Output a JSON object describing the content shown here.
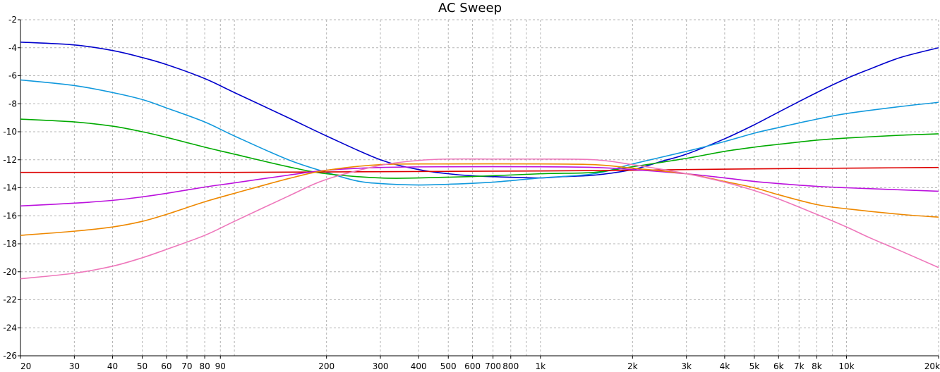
{
  "chart_data": {
    "type": "line",
    "title": "AC Sweep",
    "x_scale": "log",
    "xlim": [
      20,
      20000
    ],
    "ylim": [
      -26,
      -2
    ],
    "grid": true,
    "x_ticks": [
      {
        "value": 20,
        "label": "20"
      },
      {
        "value": 30,
        "label": "30"
      },
      {
        "value": 40,
        "label": "40"
      },
      {
        "value": 50,
        "label": "50"
      },
      {
        "value": 60,
        "label": "60"
      },
      {
        "value": 70,
        "label": "70"
      },
      {
        "value": 80,
        "label": "80"
      },
      {
        "value": 90,
        "label": "90"
      },
      {
        "value": 200,
        "label": "200"
      },
      {
        "value": 300,
        "label": "300"
      },
      {
        "value": 400,
        "label": "400"
      },
      {
        "value": 500,
        "label": "500"
      },
      {
        "value": 600,
        "label": "600"
      },
      {
        "value": 700,
        "label": "700"
      },
      {
        "value": 800,
        "label": "800"
      },
      {
        "value": 1000,
        "label": "1k"
      },
      {
        "value": 2000,
        "label": "2k"
      },
      {
        "value": 3000,
        "label": "3k"
      },
      {
        "value": 4000,
        "label": "4k"
      },
      {
        "value": 5000,
        "label": "5k"
      },
      {
        "value": 6000,
        "label": "6k"
      },
      {
        "value": 7000,
        "label": "7k"
      },
      {
        "value": 8000,
        "label": "8k"
      },
      {
        "value": 10000,
        "label": "10k"
      },
      {
        "value": 20000,
        "label": "20k"
      }
    ],
    "x_grid": [
      20,
      30,
      40,
      50,
      60,
      70,
      80,
      90,
      100,
      200,
      300,
      400,
      500,
      600,
      700,
      800,
      900,
      1000,
      2000,
      3000,
      4000,
      5000,
      6000,
      7000,
      8000,
      9000,
      10000,
      20000
    ],
    "y_ticks": [
      {
        "value": -2,
        "label": "-2"
      },
      {
        "value": -4,
        "label": "-4"
      },
      {
        "value": -6,
        "label": "-6"
      },
      {
        "value": -8,
        "label": "-8"
      },
      {
        "value": -10,
        "label": "-10"
      },
      {
        "value": -12,
        "label": "-12"
      },
      {
        "value": -14,
        "label": "-14"
      },
      {
        "value": -16,
        "label": "-16"
      },
      {
        "value": -18,
        "label": "-18"
      },
      {
        "value": -20,
        "label": "-20"
      },
      {
        "value": -22,
        "label": "-22"
      },
      {
        "value": -24,
        "label": "-24"
      },
      {
        "value": -26,
        "label": "-26"
      }
    ],
    "series": [
      {
        "color": "#0000cc",
        "points": [
          [
            20,
            -3.6
          ],
          [
            30,
            -3.8
          ],
          [
            40,
            -4.2
          ],
          [
            50,
            -4.7
          ],
          [
            60,
            -5.2
          ],
          [
            80,
            -6.2
          ],
          [
            100,
            -7.2
          ],
          [
            150,
            -9.0
          ],
          [
            200,
            -10.3
          ],
          [
            300,
            -12.0
          ],
          [
            400,
            -12.7
          ],
          [
            500,
            -13.0
          ],
          [
            600,
            -13.15
          ],
          [
            800,
            -13.25
          ],
          [
            1000,
            -13.3
          ],
          [
            1200,
            -13.2
          ],
          [
            1500,
            -13.1
          ],
          [
            2000,
            -12.7
          ],
          [
            2500,
            -12.1
          ],
          [
            3000,
            -11.6
          ],
          [
            4000,
            -10.5
          ],
          [
            5000,
            -9.5
          ],
          [
            6000,
            -8.6
          ],
          [
            8000,
            -7.2
          ],
          [
            10000,
            -6.2
          ],
          [
            12000,
            -5.5
          ],
          [
            15000,
            -4.7
          ],
          [
            20000,
            -4.0
          ]
        ]
      },
      {
        "color": "#1199dd",
        "points": [
          [
            20,
            -6.3
          ],
          [
            30,
            -6.7
          ],
          [
            40,
            -7.2
          ],
          [
            50,
            -7.7
          ],
          [
            60,
            -8.3
          ],
          [
            80,
            -9.3
          ],
          [
            100,
            -10.3
          ],
          [
            150,
            -12.0
          ],
          [
            200,
            -12.9
          ],
          [
            250,
            -13.5
          ],
          [
            300,
            -13.7
          ],
          [
            400,
            -13.8
          ],
          [
            500,
            -13.75
          ],
          [
            700,
            -13.6
          ],
          [
            1000,
            -13.3
          ],
          [
            1500,
            -13.0
          ],
          [
            2000,
            -12.3
          ],
          [
            3000,
            -11.4
          ],
          [
            4000,
            -10.7
          ],
          [
            5000,
            -10.1
          ],
          [
            6000,
            -9.7
          ],
          [
            8000,
            -9.1
          ],
          [
            10000,
            -8.7
          ],
          [
            15000,
            -8.2
          ],
          [
            20000,
            -7.9
          ]
        ]
      },
      {
        "color": "#00aa00",
        "points": [
          [
            20,
            -9.1
          ],
          [
            30,
            -9.3
          ],
          [
            40,
            -9.6
          ],
          [
            50,
            -10.0
          ],
          [
            60,
            -10.4
          ],
          [
            80,
            -11.1
          ],
          [
            100,
            -11.6
          ],
          [
            150,
            -12.5
          ],
          [
            200,
            -13.0
          ],
          [
            300,
            -13.3
          ],
          [
            400,
            -13.3
          ],
          [
            600,
            -13.2
          ],
          [
            1000,
            -13.0
          ],
          [
            1500,
            -12.9
          ],
          [
            2000,
            -12.5
          ],
          [
            3000,
            -11.9
          ],
          [
            4000,
            -11.4
          ],
          [
            5000,
            -11.1
          ],
          [
            6000,
            -10.9
          ],
          [
            8000,
            -10.6
          ],
          [
            10000,
            -10.45
          ],
          [
            15000,
            -10.25
          ],
          [
            20000,
            -10.15
          ]
        ]
      },
      {
        "color": "#dd0000",
        "points": [
          [
            20,
            -12.9
          ],
          [
            100,
            -12.9
          ],
          [
            300,
            -12.85
          ],
          [
            1000,
            -12.8
          ],
          [
            2000,
            -12.75
          ],
          [
            3000,
            -12.7
          ],
          [
            5000,
            -12.65
          ],
          [
            10000,
            -12.6
          ],
          [
            20000,
            -12.55
          ]
        ]
      },
      {
        "color": "#bb11dd",
        "points": [
          [
            20,
            -15.3
          ],
          [
            30,
            -15.1
          ],
          [
            40,
            -14.9
          ],
          [
            50,
            -14.65
          ],
          [
            60,
            -14.4
          ],
          [
            80,
            -13.95
          ],
          [
            100,
            -13.65
          ],
          [
            150,
            -13.1
          ],
          [
            200,
            -12.75
          ],
          [
            300,
            -12.55
          ],
          [
            500,
            -12.5
          ],
          [
            1000,
            -12.5
          ],
          [
            1500,
            -12.55
          ],
          [
            2000,
            -12.7
          ],
          [
            3000,
            -13.0
          ],
          [
            4000,
            -13.3
          ],
          [
            5000,
            -13.55
          ],
          [
            6000,
            -13.7
          ],
          [
            8000,
            -13.9
          ],
          [
            10000,
            -14.0
          ],
          [
            15000,
            -14.15
          ],
          [
            20000,
            -14.25
          ]
        ]
      },
      {
        "color": "#ee8800",
        "points": [
          [
            20,
            -17.4
          ],
          [
            30,
            -17.1
          ],
          [
            40,
            -16.8
          ],
          [
            50,
            -16.4
          ],
          [
            60,
            -15.9
          ],
          [
            80,
            -15.0
          ],
          [
            100,
            -14.4
          ],
          [
            150,
            -13.35
          ],
          [
            200,
            -12.75
          ],
          [
            300,
            -12.35
          ],
          [
            500,
            -12.3
          ],
          [
            1000,
            -12.3
          ],
          [
            1500,
            -12.35
          ],
          [
            2000,
            -12.6
          ],
          [
            3000,
            -13.0
          ],
          [
            4000,
            -13.55
          ],
          [
            5000,
            -14.0
          ],
          [
            6000,
            -14.5
          ],
          [
            8000,
            -15.2
          ],
          [
            10000,
            -15.5
          ],
          [
            15000,
            -15.9
          ],
          [
            20000,
            -16.1
          ]
        ]
      },
      {
        "color": "#ee77bb",
        "points": [
          [
            20,
            -20.5
          ],
          [
            30,
            -20.1
          ],
          [
            40,
            -19.6
          ],
          [
            50,
            -19.0
          ],
          [
            60,
            -18.4
          ],
          [
            80,
            -17.4
          ],
          [
            100,
            -16.4
          ],
          [
            150,
            -14.6
          ],
          [
            200,
            -13.4
          ],
          [
            300,
            -12.4
          ],
          [
            400,
            -12.05
          ],
          [
            500,
            -11.95
          ],
          [
            700,
            -11.95
          ],
          [
            1000,
            -11.95
          ],
          [
            1500,
            -12.0
          ],
          [
            2000,
            -12.35
          ],
          [
            3000,
            -13.0
          ],
          [
            4000,
            -13.6
          ],
          [
            5000,
            -14.2
          ],
          [
            6000,
            -14.8
          ],
          [
            8000,
            -15.9
          ],
          [
            10000,
            -16.8
          ],
          [
            12000,
            -17.6
          ],
          [
            15000,
            -18.5
          ],
          [
            20000,
            -19.7
          ]
        ]
      }
    ]
  }
}
